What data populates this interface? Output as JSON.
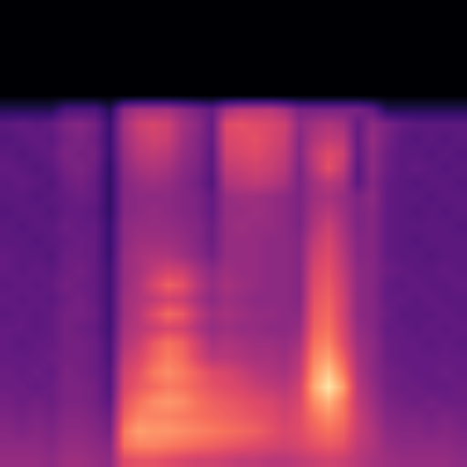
{
  "chart_data": {
    "type": "heatmap",
    "tick_labels": false,
    "grid": false,
    "zlim": [
      0,
      100
    ],
    "cells": [
      [
        0,
        0,
        0,
        0,
        0,
        0,
        0,
        0,
        0,
        0,
        0,
        0,
        0,
        0,
        0,
        0,
        0,
        0,
        0,
        0,
        0,
        0,
        0,
        0,
        0,
        0,
        0,
        0,
        0,
        0,
        0,
        0
      ],
      [
        0,
        0,
        0,
        0,
        0,
        0,
        0,
        0,
        0,
        0,
        0,
        0,
        0,
        0,
        0,
        0,
        0,
        0,
        0,
        0,
        0,
        0,
        0,
        0,
        0,
        0,
        0,
        0,
        0,
        0,
        0,
        0
      ],
      [
        0,
        0,
        0,
        0,
        0,
        0,
        0,
        0,
        0,
        0,
        0,
        0,
        0,
        0,
        0,
        0,
        0,
        0,
        0,
        0,
        0,
        0,
        0,
        0,
        0,
        0,
        0,
        0,
        0,
        0,
        0,
        0
      ],
      [
        0,
        0,
        0,
        0,
        0,
        0,
        0,
        0,
        0,
        0,
        0,
        0,
        0,
        0,
        0,
        0,
        0,
        0,
        0,
        0,
        0,
        0,
        0,
        0,
        0,
        0,
        0,
        0,
        0,
        0,
        0,
        0
      ],
      [
        0,
        0,
        0,
        0,
        0,
        0,
        0,
        0,
        0,
        0,
        0,
        0,
        0,
        0,
        0,
        0,
        0,
        0,
        0,
        0,
        0,
        0,
        0,
        0,
        0,
        0,
        0,
        0,
        0,
        0,
        0,
        0
      ],
      [
        0,
        0,
        0,
        0,
        0,
        0,
        0,
        0,
        0,
        0,
        0,
        0,
        0,
        0,
        0,
        0,
        0,
        0,
        0,
        0,
        0,
        0,
        0,
        0,
        0,
        0,
        0,
        0,
        0,
        0,
        0,
        0
      ],
      [
        0,
        0,
        0,
        0,
        0,
        0,
        0,
        0,
        0,
        0,
        0,
        0,
        0,
        0,
        0,
        0,
        0,
        0,
        0,
        0,
        0,
        0,
        0,
        0,
        0,
        0,
        0,
        0,
        0,
        0,
        0,
        0
      ],
      [
        15,
        15,
        15,
        15,
        25,
        25,
        25,
        15,
        40,
        45,
        45,
        45,
        40,
        35,
        30,
        45,
        50,
        50,
        50,
        45,
        35,
        35,
        35,
        35,
        35,
        30,
        15,
        15,
        15,
        15,
        15,
        15
      ],
      [
        28,
        30,
        28,
        30,
        36,
        38,
        34,
        20,
        45,
        55,
        58,
        55,
        45,
        40,
        30,
        60,
        62,
        60,
        58,
        55,
        40,
        45,
        48,
        45,
        30,
        40,
        35,
        30,
        28,
        28,
        28,
        28
      ],
      [
        26,
        28,
        30,
        28,
        34,
        36,
        32,
        20,
        44,
        52,
        56,
        54,
        44,
        38,
        30,
        58,
        60,
        62,
        58,
        54,
        38,
        48,
        52,
        50,
        30,
        42,
        34,
        28,
        26,
        28,
        26,
        28
      ],
      [
        28,
        26,
        28,
        30,
        36,
        34,
        34,
        20,
        42,
        50,
        52,
        50,
        42,
        38,
        28,
        56,
        58,
        60,
        56,
        52,
        38,
        52,
        60,
        55,
        30,
        40,
        32,
        28,
        28,
        26,
        28,
        26
      ],
      [
        30,
        28,
        26,
        28,
        34,
        36,
        32,
        18,
        40,
        46,
        48,
        46,
        40,
        36,
        28,
        52,
        54,
        56,
        54,
        50,
        36,
        50,
        62,
        52,
        28,
        40,
        32,
        28,
        30,
        28,
        26,
        28
      ],
      [
        28,
        30,
        28,
        26,
        32,
        34,
        30,
        18,
        38,
        42,
        44,
        42,
        38,
        34,
        26,
        48,
        50,
        52,
        50,
        46,
        36,
        45,
        50,
        46,
        28,
        38,
        30,
        28,
        26,
        28,
        28,
        26
      ],
      [
        28,
        28,
        26,
        28,
        30,
        32,
        30,
        18,
        38,
        40,
        40,
        40,
        38,
        36,
        30,
        42,
        44,
        44,
        42,
        40,
        36,
        44,
        46,
        42,
        36,
        40,
        30,
        28,
        28,
        26,
        28,
        28
      ],
      [
        26,
        28,
        28,
        26,
        30,
        30,
        28,
        18,
        38,
        40,
        42,
        40,
        38,
        36,
        30,
        42,
        42,
        44,
        42,
        40,
        36,
        46,
        50,
        44,
        36,
        38,
        30,
        28,
        26,
        28,
        26,
        28
      ],
      [
        28,
        26,
        28,
        28,
        32,
        30,
        30,
        20,
        40,
        42,
        42,
        42,
        40,
        38,
        32,
        42,
        44,
        42,
        42,
        40,
        36,
        48,
        55,
        46,
        36,
        38,
        30,
        28,
        28,
        28,
        28,
        26
      ],
      [
        28,
        28,
        26,
        28,
        30,
        32,
        30,
        20,
        40,
        44,
        44,
        44,
        42,
        38,
        32,
        42,
        42,
        42,
        40,
        40,
        38,
        52,
        58,
        48,
        38,
        38,
        30,
        28,
        26,
        28,
        28,
        28
      ],
      [
        30,
        28,
        28,
        26,
        32,
        32,
        30,
        20,
        42,
        46,
        48,
        48,
        44,
        40,
        34,
        42,
        42,
        42,
        40,
        40,
        38,
        55,
        60,
        50,
        38,
        38,
        30,
        28,
        28,
        26,
        28,
        28
      ],
      [
        30,
        28,
        30,
        28,
        32,
        34,
        30,
        22,
        42,
        46,
        52,
        56,
        54,
        46,
        40,
        44,
        42,
        42,
        40,
        40,
        38,
        58,
        62,
        52,
        40,
        38,
        32,
        30,
        28,
        28,
        30,
        28
      ],
      [
        28,
        30,
        28,
        30,
        34,
        32,
        30,
        22,
        42,
        48,
        58,
        66,
        62,
        50,
        42,
        46,
        44,
        42,
        40,
        40,
        38,
        60,
        64,
        54,
        40,
        38,
        30,
        28,
        30,
        28,
        28,
        30
      ],
      [
        30,
        28,
        30,
        28,
        32,
        34,
        30,
        22,
        44,
        48,
        52,
        56,
        54,
        46,
        40,
        44,
        42,
        40,
        40,
        40,
        38,
        62,
        66,
        56,
        40,
        38,
        30,
        30,
        28,
        30,
        28,
        28
      ],
      [
        28,
        30,
        28,
        30,
        34,
        34,
        32,
        22,
        44,
        50,
        60,
        68,
        64,
        52,
        44,
        46,
        44,
        42,
        42,
        40,
        40,
        64,
        68,
        56,
        40,
        38,
        32,
        28,
        28,
        28,
        30,
        28
      ],
      [
        30,
        30,
        28,
        30,
        34,
        32,
        30,
        22,
        46,
        50,
        54,
        58,
        56,
        48,
        42,
        44,
        42,
        42,
        40,
        40,
        42,
        66,
        70,
        58,
        42,
        38,
        30,
        30,
        28,
        30,
        28,
        30
      ],
      [
        30,
        28,
        30,
        30,
        34,
        34,
        32,
        24,
        48,
        54,
        64,
        70,
        66,
        56,
        46,
        48,
        46,
        44,
        44,
        42,
        46,
        70,
        74,
        60,
        44,
        40,
        32,
        30,
        30,
        28,
        30,
        28
      ],
      [
        30,
        30,
        30,
        32,
        34,
        34,
        32,
        24,
        52,
        58,
        66,
        72,
        68,
        58,
        50,
        50,
        48,
        46,
        46,
        44,
        50,
        74,
        80,
        66,
        46,
        40,
        32,
        30,
        30,
        30,
        30,
        30
      ],
      [
        32,
        30,
        32,
        30,
        36,
        34,
        32,
        26,
        56,
        62,
        72,
        76,
        72,
        66,
        60,
        58,
        54,
        50,
        48,
        46,
        52,
        78,
        88,
        72,
        48,
        40,
        34,
        32,
        30,
        30,
        32,
        30
      ],
      [
        32,
        32,
        30,
        32,
        36,
        36,
        34,
        26,
        58,
        64,
        68,
        72,
        70,
        66,
        62,
        60,
        58,
        54,
        52,
        50,
        56,
        82,
        95,
        80,
        50,
        42,
        34,
        32,
        32,
        30,
        30,
        32
      ],
      [
        34,
        32,
        34,
        32,
        36,
        36,
        34,
        28,
        62,
        70,
        76,
        78,
        76,
        70,
        66,
        64,
        62,
        60,
        58,
        54,
        58,
        76,
        84,
        72,
        52,
        44,
        36,
        34,
        32,
        34,
        32,
        32
      ],
      [
        36,
        34,
        36,
        34,
        38,
        38,
        36,
        32,
        66,
        74,
        74,
        74,
        72,
        70,
        68,
        66,
        64,
        62,
        60,
        56,
        60,
        70,
        76,
        70,
        54,
        46,
        38,
        36,
        36,
        34,
        36,
        34
      ],
      [
        38,
        36,
        38,
        36,
        40,
        40,
        38,
        34,
        72,
        80,
        78,
        78,
        76,
        74,
        72,
        70,
        68,
        66,
        62,
        58,
        60,
        66,
        70,
        66,
        54,
        48,
        40,
        38,
        38,
        36,
        38,
        36
      ],
      [
        40,
        40,
        40,
        38,
        42,
        42,
        40,
        38,
        70,
        74,
        74,
        72,
        70,
        68,
        66,
        64,
        62,
        60,
        58,
        56,
        58,
        62,
        64,
        62,
        52,
        48,
        42,
        40,
        40,
        40,
        40,
        38
      ],
      [
        42,
        42,
        42,
        40,
        44,
        44,
        42,
        40,
        60,
        62,
        62,
        60,
        58,
        56,
        56,
        54,
        52,
        52,
        50,
        50,
        52,
        54,
        56,
        54,
        50,
        46,
        44,
        42,
        42,
        42,
        42,
        40
      ]
    ]
  }
}
